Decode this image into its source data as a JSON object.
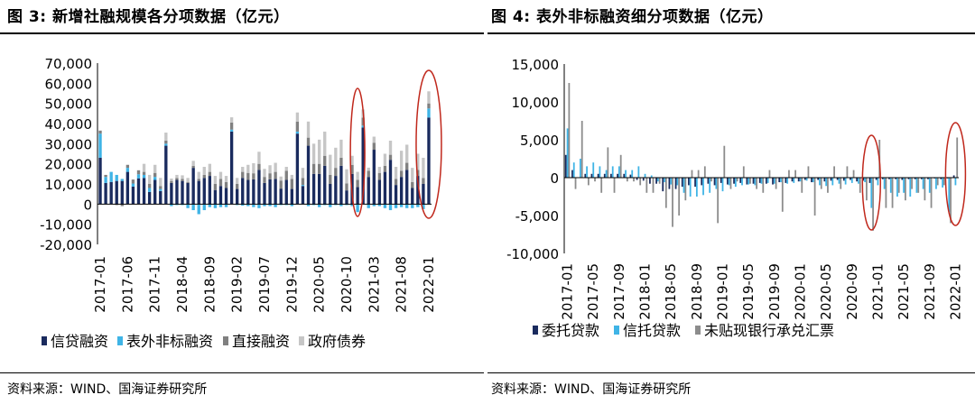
{
  "colors": {
    "credit": "#1a2b5e",
    "offbalance": "#3fb4e6",
    "direct": "#808080",
    "gov": "#c6c6c6",
    "entrust": "#1a2b5e",
    "trust": "#3fb4e6",
    "bills": "#8c8c8c",
    "ellipse": "#c0281c"
  },
  "chart_data": [
    {
      "type": "bar",
      "stacked": true,
      "title": "图 3:  新增社融规模各分项数据（亿元）",
      "source": "资料来源：WIND、国海证券研究所",
      "ylim": [
        -20000,
        70000
      ],
      "yticks": [
        "70,000",
        "60,000",
        "50,000",
        "40,000",
        "30,000",
        "20,000",
        "10,000",
        "0",
        "-10,000",
        "-20,000"
      ],
      "xtick_labels": [
        "2017-01",
        "2017-06",
        "2017-11",
        "2018-04",
        "2018-09",
        "2019-02",
        "2019-07",
        "2019-12",
        "2020-05",
        "2020-10",
        "2021-03",
        "2021-08",
        "2022-01"
      ],
      "start": "2017-01",
      "legend": [
        "信贷融资",
        "表外非标融资",
        "直接融资",
        "政府债券"
      ],
      "series": [
        {
          "name": "信贷融资",
          "values": [
            23000,
            10500,
            11000,
            11500,
            11500,
            16000,
            8700,
            12800,
            13000,
            6000,
            12000,
            6500,
            29000,
            10500,
            12000,
            11500,
            10500,
            18000,
            11500,
            13000,
            14000,
            7000,
            9000,
            8000,
            36000,
            7500,
            13000,
            12000,
            12300,
            17000,
            10500,
            12300,
            12500,
            7700,
            12000,
            7500,
            35000,
            9000,
            29000,
            15000,
            15000,
            19000,
            10000,
            14000,
            19000,
            6800,
            15000,
            8500,
            38000,
            13500,
            27000,
            12000,
            16000,
            22000,
            9500,
            13500,
            17000,
            8000,
            14000,
            10000,
            43000
          ]
        },
        {
          "name": "表外非标融资",
          "values": [
            12000,
            3000,
            5000,
            3000,
            1000,
            2000,
            1500,
            2000,
            1500,
            2000,
            1500,
            1000,
            1000,
            -1000,
            -500,
            -500,
            -2000,
            -3000,
            -5000,
            -3000,
            -1500,
            -2000,
            -1500,
            -1500,
            1000,
            -500,
            -800,
            -1000,
            -1500,
            -2000,
            -1000,
            -1000,
            -1500,
            -500,
            -500,
            -1000,
            1000,
            500,
            -1000,
            -500,
            -1500,
            -500,
            -1500,
            -500,
            -1000,
            -500,
            -1000,
            -4000,
            1000,
            -2000,
            -1000,
            -1000,
            -2000,
            -3000,
            -2000,
            -1500,
            -2000,
            -2000,
            -1500,
            -2500,
            4500
          ]
        },
        {
          "name": "直接融资",
          "values": [
            1500,
            1000,
            0,
            -500,
            -1000,
            1500,
            2000,
            2000,
            1500,
            2000,
            2000,
            1500,
            1500,
            1000,
            1000,
            1000,
            500,
            1000,
            1000,
            1500,
            2000,
            3000,
            3500,
            3000,
            3500,
            2500,
            3000,
            3500,
            3000,
            3000,
            3000,
            3000,
            3500,
            4000,
            4500,
            5000,
            5000,
            3500,
            4000,
            5000,
            5000,
            5000,
            4500,
            4000,
            4000,
            3500,
            4500,
            3500,
            4000,
            3000,
            3500,
            3500,
            3000,
            2500,
            3000,
            3000,
            3500,
            3000,
            3000,
            3000,
            2500
          ]
        },
        {
          "name": "政府债券",
          "values": [
            0,
            0,
            0,
            0,
            0,
            0,
            0,
            0,
            4000,
            4500,
            4000,
            4000,
            4000,
            1200,
            1500,
            1800,
            2000,
            2500,
            3500,
            4000,
            4000,
            4000,
            3500,
            3000,
            2600,
            3000,
            2500,
            4000,
            5000,
            6000,
            4000,
            4000,
            4500,
            2000,
            2000,
            2000,
            4500,
            5000,
            8000,
            10000,
            12000,
            12000,
            10000,
            10000,
            9000,
            7000,
            4500,
            4000,
            4000,
            1600,
            3000,
            3000,
            6000,
            7000,
            6000,
            10000,
            9000,
            7000,
            8000,
            10000,
            6000
          ]
        }
      ],
      "highlights": [
        "2020-12",
        "2022-01"
      ]
    },
    {
      "type": "bar",
      "stacked": false,
      "title": "图 4:  表外非标融资细分项数据（亿元）",
      "source": "资料来源：WIND、国海证券研究所",
      "ylim": [
        -10000,
        15000
      ],
      "yticks": [
        "15,000",
        "10,000",
        "5,000",
        "0",
        "-5,000",
        "-10,000"
      ],
      "xtick_labels": [
        "2017-01",
        "2017-05",
        "2017-09",
        "2018-01",
        "2018-05",
        "2018-09",
        "2019-01",
        "2019-05",
        "2019-09",
        "2020-01",
        "2020-05",
        "2020-09",
        "2021-01",
        "2021-05",
        "2021-09",
        "2022-01"
      ],
      "start": "2017-01",
      "legend": [
        "委托贷款",
        "信托贷款",
        "未贴现银行承兑汇票"
      ],
      "series": [
        {
          "name": "委托贷款",
          "values": [
            3000,
            1000,
            0,
            500,
            500,
            500,
            500,
            500,
            500,
            500,
            400,
            -300,
            -400,
            -800,
            -800,
            -1800,
            -1500,
            -1500,
            -1200,
            -1000,
            -1200,
            -1000,
            -800,
            -1000,
            -700,
            -900,
            -800,
            -700,
            -900,
            -800,
            -700,
            -800,
            -900,
            -600,
            -700,
            -500,
            -500,
            -300,
            -600,
            -300,
            -500,
            -400,
            -300,
            -400,
            -300,
            -500,
            -400,
            -700,
            -300,
            -200,
            -200,
            -200,
            -300,
            -200,
            -200,
            -200,
            -200,
            -100,
            -200,
            -100,
            300
          ]
        },
        {
          "name": "信托贷款",
          "values": [
            6500,
            2000,
            2500,
            1500,
            2000,
            1500,
            1000,
            1500,
            1500,
            1000,
            1000,
            1500,
            500,
            300,
            -500,
            -600,
            -900,
            -1000,
            -2000,
            -2500,
            -2500,
            -2300,
            -2000,
            -1500,
            -1800,
            -1000,
            -1200,
            -1000,
            -900,
            -1000,
            -800,
            -700,
            -800,
            -600,
            -800,
            -700,
            -500,
            -400,
            -600,
            -1000,
            -1100,
            -1000,
            -800,
            -900,
            -700,
            -800,
            -600,
            -4000,
            -1000,
            -1500,
            -2000,
            -2500,
            -2000,
            -2500,
            -2000,
            -1500,
            -2000,
            -1500,
            -1300,
            -4500,
            -1000
          ]
        },
        {
          "name": "未贴现银行承兑汇票",
          "values": [
            12500,
            -1500,
            7500,
            -1000,
            -500,
            -2000,
            4000,
            -2000,
            3000,
            -500,
            -500,
            -1000,
            -2000,
            -2000,
            -800,
            -4000,
            -6500,
            -5000,
            -3000,
            1000,
            1000,
            1500,
            -500,
            -6000,
            4200,
            -1500,
            -500,
            1500,
            -800,
            -1500,
            -2000,
            1000,
            -1500,
            -4500,
            1000,
            1000,
            -2000,
            1500,
            -5000,
            -1500,
            -2000,
            1500,
            -1500,
            1500,
            1000,
            -2000,
            -3000,
            -7000,
            5000,
            -4000,
            -4000,
            -2000,
            -3000,
            -1500,
            -2000,
            -3000,
            -4000,
            -1000,
            -1000,
            -6000,
            5300
          ]
        }
      ],
      "highlights": [
        "2020-12",
        "2022-01"
      ]
    }
  ]
}
